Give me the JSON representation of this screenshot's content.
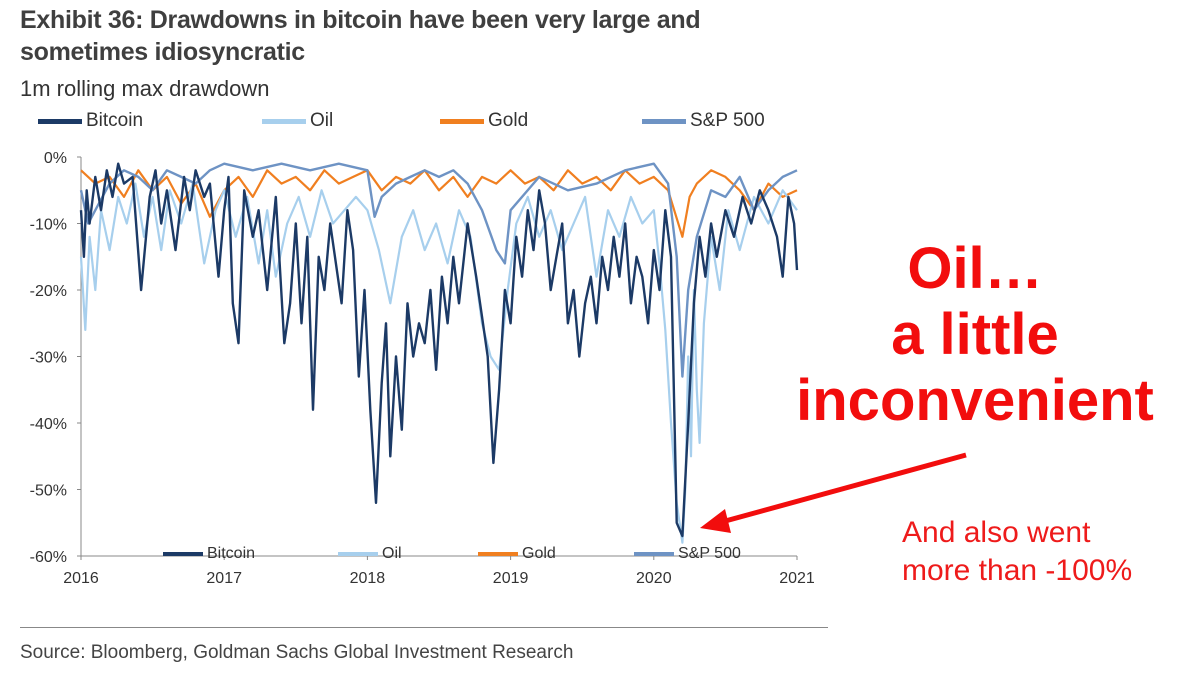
{
  "colors": {
    "bitcoin": "#1c3a66",
    "oil": "#a7cfed",
    "gold": "#f07f20",
    "sp500": "#6e93c4",
    "annotation": "#f20d0d"
  },
  "chart_data": {
    "type": "line",
    "title": "Exhibit 36: Drawdowns in bitcoin have been very large and sometimes idiosyncratic",
    "subtitle": "1m rolling max drawdown",
    "xlabel": "",
    "ylabel": "",
    "x_range": [
      2016.0,
      2021.0
    ],
    "ylim": [
      -60,
      0
    ],
    "y_ticks": [
      0,
      -10,
      -20,
      -30,
      -40,
      -50,
      -60
    ],
    "y_tick_labels": [
      "0%",
      "-10%",
      "-20%",
      "-30%",
      "-40%",
      "-50%",
      "-60%"
    ],
    "x_ticks": [
      2016,
      2017,
      2018,
      2019,
      2020,
      2021
    ],
    "x_tick_labels": [
      "2016",
      "2017",
      "2018",
      "2019",
      "2020",
      "2021"
    ],
    "legend": [
      "Bitcoin",
      "Oil",
      "Gold",
      "S&P 500"
    ],
    "legend_placement": "top",
    "grid": false,
    "series": [
      {
        "name": "Bitcoin",
        "color": "#1c3a66",
        "x": [
          2016.0,
          2016.02,
          2016.04,
          2016.06,
          2016.1,
          2016.14,
          2016.18,
          2016.22,
          2016.26,
          2016.3,
          2016.36,
          2016.42,
          2016.48,
          2016.52,
          2016.56,
          2016.6,
          2016.66,
          2016.72,
          2016.76,
          2016.8,
          2016.86,
          2016.9,
          2016.96,
          2017.0,
          2017.03,
          2017.06,
          2017.1,
          2017.14,
          2017.2,
          2017.24,
          2017.3,
          2017.36,
          2017.42,
          2017.46,
          2017.5,
          2017.54,
          2017.58,
          2017.62,
          2017.66,
          2017.7,
          2017.74,
          2017.78,
          2017.82,
          2017.86,
          2017.9,
          2017.94,
          2017.98,
          2018.02,
          2018.06,
          2018.1,
          2018.13,
          2018.16,
          2018.2,
          2018.24,
          2018.28,
          2018.32,
          2018.36,
          2018.4,
          2018.44,
          2018.48,
          2018.52,
          2018.56,
          2018.6,
          2018.64,
          2018.7,
          2018.76,
          2018.8,
          2018.84,
          2018.88,
          2018.92,
          2018.96,
          2019.0,
          2019.04,
          2019.08,
          2019.12,
          2019.16,
          2019.2,
          2019.24,
          2019.28,
          2019.32,
          2019.36,
          2019.4,
          2019.44,
          2019.48,
          2019.52,
          2019.56,
          2019.6,
          2019.64,
          2019.68,
          2019.72,
          2019.76,
          2019.8,
          2019.84,
          2019.88,
          2019.92,
          2019.96,
          2020.0,
          2020.04,
          2020.08,
          2020.12,
          2020.16,
          2020.2,
          2020.24,
          2020.28,
          2020.32,
          2020.36,
          2020.4,
          2020.44,
          2020.5,
          2020.56,
          2020.62,
          2020.68,
          2020.74,
          2020.8,
          2020.86,
          2020.9,
          2020.94,
          2020.98,
          2021.0
        ],
        "values": [
          -8,
          -15,
          -5,
          -10,
          -3,
          -8,
          -2,
          -6,
          -1,
          -4,
          -3,
          -20,
          -6,
          -2,
          -10,
          -5,
          -14,
          -3,
          -8,
          -2,
          -6,
          -4,
          -18,
          -8,
          -3,
          -22,
          -28,
          -5,
          -12,
          -8,
          -20,
          -6,
          -28,
          -22,
          -10,
          -25,
          -12,
          -38,
          -15,
          -20,
          -10,
          -16,
          -22,
          -8,
          -14,
          -33,
          -20,
          -38,
          -52,
          -34,
          -25,
          -45,
          -30,
          -41,
          -22,
          -30,
          -25,
          -28,
          -20,
          -32,
          -18,
          -25,
          -15,
          -22,
          -10,
          -18,
          -24,
          -30,
          -46,
          -35,
          -20,
          -25,
          -12,
          -18,
          -8,
          -14,
          -5,
          -10,
          -20,
          -15,
          -10,
          -25,
          -20,
          -30,
          -22,
          -18,
          -25,
          -15,
          -20,
          -12,
          -18,
          -10,
          -22,
          -15,
          -18,
          -25,
          -14,
          -20,
          -8,
          -15,
          -55,
          -57,
          -40,
          -22,
          -12,
          -18,
          -10,
          -15,
          -8,
          -12,
          -6,
          -10,
          -5,
          -8,
          -12,
          -18,
          -6,
          -10,
          -17
        ]
      },
      {
        "name": "Oil",
        "color": "#a7cfed",
        "x": [
          2016.0,
          2016.03,
          2016.06,
          2016.1,
          2016.14,
          2016.2,
          2016.26,
          2016.32,
          2016.38,
          2016.44,
          2016.5,
          2016.56,
          2016.62,
          2016.7,
          2016.78,
          2016.86,
          2016.94,
          2017.0,
          2017.08,
          2017.16,
          2017.24,
          2017.3,
          2017.36,
          2017.44,
          2017.52,
          2017.6,
          2017.68,
          2017.76,
          2017.84,
          2017.92,
          2018.0,
          2018.08,
          2018.16,
          2018.24,
          2018.32,
          2018.4,
          2018.48,
          2018.56,
          2018.64,
          2018.72,
          2018.8,
          2018.86,
          2018.92,
          2018.98,
          2019.04,
          2019.12,
          2019.2,
          2019.28,
          2019.36,
          2019.44,
          2019.52,
          2019.6,
          2019.68,
          2019.76,
          2019.84,
          2019.92,
          2020.0,
          2020.04,
          2020.08,
          2020.12,
          2020.16,
          2020.2,
          2020.22,
          2020.24,
          2020.26,
          2020.28,
          2020.3,
          2020.32,
          2020.35,
          2020.4,
          2020.46,
          2020.52,
          2020.6,
          2020.7,
          2020.8,
          2020.9,
          2021.0
        ],
        "values": [
          -15,
          -26,
          -12,
          -20,
          -8,
          -14,
          -6,
          -10,
          -4,
          -12,
          -6,
          -14,
          -5,
          -10,
          -4,
          -16,
          -8,
          -5,
          -12,
          -6,
          -16,
          -8,
          -18,
          -10,
          -6,
          -12,
          -5,
          -10,
          -8,
          -6,
          -8,
          -14,
          -22,
          -12,
          -8,
          -14,
          -10,
          -16,
          -8,
          -12,
          -25,
          -30,
          -32,
          -20,
          -10,
          -6,
          -12,
          -8,
          -14,
          -10,
          -6,
          -18,
          -8,
          -12,
          -6,
          -10,
          -8,
          -16,
          -26,
          -40,
          -52,
          -58,
          -50,
          -30,
          -45,
          -20,
          -35,
          -43,
          -25,
          -12,
          -20,
          -8,
          -14,
          -6,
          -10,
          -5,
          -8
        ]
      },
      {
        "name": "Gold",
        "color": "#f07f20",
        "x": [
          2016.0,
          2016.1,
          2016.2,
          2016.3,
          2016.4,
          2016.5,
          2016.6,
          2016.7,
          2016.8,
          2016.9,
          2017.0,
          2017.1,
          2017.2,
          2017.3,
          2017.4,
          2017.5,
          2017.6,
          2017.7,
          2017.8,
          2017.9,
          2018.0,
          2018.1,
          2018.2,
          2018.3,
          2018.4,
          2018.5,
          2018.6,
          2018.7,
          2018.8,
          2018.9,
          2019.0,
          2019.1,
          2019.2,
          2019.3,
          2019.4,
          2019.5,
          2019.6,
          2019.7,
          2019.8,
          2019.9,
          2020.0,
          2020.1,
          2020.2,
          2020.25,
          2020.3,
          2020.4,
          2020.5,
          2020.6,
          2020.7,
          2020.8,
          2020.9,
          2021.0
        ],
        "values": [
          -2,
          -4,
          -3,
          -6,
          -2,
          -5,
          -3,
          -7,
          -4,
          -9,
          -5,
          -3,
          -6,
          -2,
          -4,
          -3,
          -5,
          -2,
          -4,
          -3,
          -2,
          -5,
          -3,
          -4,
          -2,
          -5,
          -3,
          -6,
          -3,
          -4,
          -2,
          -4,
          -3,
          -5,
          -2,
          -4,
          -3,
          -5,
          -2,
          -4,
          -3,
          -5,
          -12,
          -6,
          -4,
          -2,
          -3,
          -5,
          -8,
          -4,
          -6,
          -5
        ]
      },
      {
        "name": "S&P 500",
        "color": "#6e93c4",
        "x": [
          2016.0,
          2016.05,
          2016.1,
          2016.2,
          2016.3,
          2016.4,
          2016.5,
          2016.6,
          2016.7,
          2016.8,
          2016.9,
          2017.0,
          2017.2,
          2017.4,
          2017.6,
          2017.8,
          2018.0,
          2018.05,
          2018.1,
          2018.2,
          2018.3,
          2018.4,
          2018.5,
          2018.6,
          2018.7,
          2018.8,
          2018.9,
          2018.96,
          2019.0,
          2019.2,
          2019.4,
          2019.6,
          2019.8,
          2020.0,
          2020.1,
          2020.16,
          2020.2,
          2020.24,
          2020.3,
          2020.4,
          2020.5,
          2020.6,
          2020.7,
          2020.8,
          2020.9,
          2021.0
        ],
        "values": [
          -5,
          -10,
          -8,
          -4,
          -2,
          -3,
          -5,
          -2,
          -3,
          -4,
          -2,
          -1,
          -2,
          -1,
          -2,
          -1,
          -2,
          -9,
          -6,
          -4,
          -3,
          -2,
          -3,
          -2,
          -4,
          -8,
          -14,
          -16,
          -8,
          -3,
          -5,
          -4,
          -2,
          -1,
          -4,
          -15,
          -33,
          -20,
          -12,
          -5,
          -6,
          -3,
          -8,
          -5,
          -3,
          -2
        ]
      }
    ]
  },
  "legend_top": {
    "bitcoin": "Bitcoin",
    "oil": "Oil",
    "gold": "Gold",
    "sp500": "S&P 500"
  },
  "legend_bottom": {
    "bitcoin": "Bitcoin",
    "oil": "Oil",
    "gold": "Gold",
    "sp500": "S&P 500"
  },
  "annotation": {
    "line1": "Oil…",
    "line2": "a little",
    "line3": "inconvenient",
    "note1": "And also went",
    "note2": "more than -100%"
  },
  "source": "Source: Bloomberg, Goldman Sachs Global Investment Research"
}
